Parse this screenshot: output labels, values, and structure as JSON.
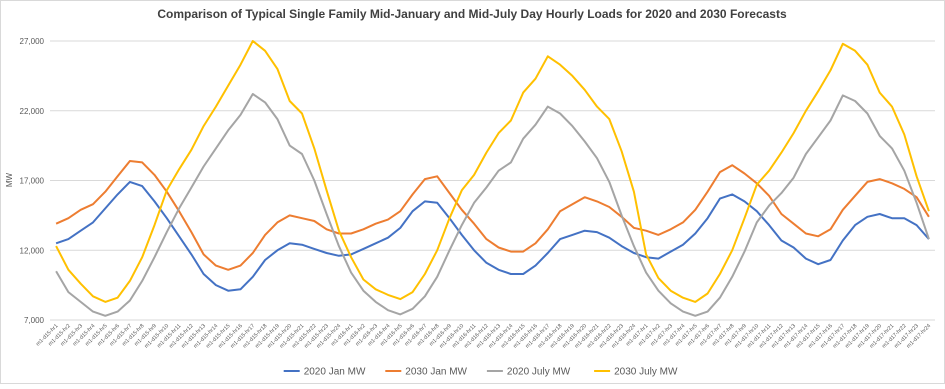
{
  "chart_data": {
    "type": "line",
    "title": "Comparison of Typical Single Family  Mid-January and Mid-July Day Hourly Loads for 2020 and 2030 Forecasts",
    "y_label": "MW",
    "categories": [
      "m1-d15-hr1",
      "m1-d15-hr2",
      "m1-d15-hr3",
      "m1-d15-hr4",
      "m1-d15-hr5",
      "m1-d15-hr6",
      "m1-d15-hr7",
      "m1-d15-hr8",
      "m1-d15-hr9",
      "m1-d15-hr10",
      "m1-d15-hr11",
      "m1-d15-hr12",
      "m1-d15-hr13",
      "m1-d15-hr14",
      "m1-d15-hr15",
      "m1-d15-hr16",
      "m1-d15-hr17",
      "m1-d15-hr18",
      "m1-d15-hr19",
      "m1-d15-hr20",
      "m1-d15-hr21",
      "m1-d15-hr22",
      "m1-d15-hr23",
      "m1-d15-hr24",
      "m1-d16-hr1",
      "m1-d16-hr2",
      "m1-d16-hr3",
      "m1-d16-hr4",
      "m1-d16-hr5",
      "m1-d16-hr6",
      "m1-d16-hr7",
      "m1-d16-hr8",
      "m1-d16-hr9",
      "m1-d16-hr10",
      "m1-d16-hr11",
      "m1-d16-hr12",
      "m1-d16-hr13",
      "m1-d16-hr14",
      "m1-d16-hr15",
      "m1-d16-hr16",
      "m1-d16-hr17",
      "m1-d16-hr18",
      "m1-d16-hr19",
      "m1-d16-hr20",
      "m1-d16-hr21",
      "m1-d16-hr22",
      "m1-d16-hr23",
      "m1-d16-hr24",
      "m1-d17-hr1",
      "m1-d17-hr2",
      "m1-d17-hr3",
      "m1-d17-hr4",
      "m1-d17-hr5",
      "m1-d17-hr6",
      "m1-d17-hr7",
      "m1-d17-hr8",
      "m1-d17-hr9",
      "m1-d17-hr10",
      "m1-d17-hr11",
      "m1-d17-hr12",
      "m1-d17-hr13",
      "m1-d17-hr14",
      "m1-d17-hr15",
      "m1-d17-hr16",
      "m1-d17-hr17",
      "m1-d17-hr18",
      "m1-d17-hr19",
      "m1-d17-hr20",
      "m1-d17-hr21",
      "m1-d17-hr22",
      "m1-d17-hr23",
      "m1-d17-hr24"
    ],
    "series": [
      {
        "name": "2020 Jan MW",
        "color": "#4472c4",
        "values": [
          12500,
          12800,
          13400,
          14000,
          15000,
          16000,
          16900,
          16600,
          15500,
          14300,
          13000,
          11700,
          10300,
          9500,
          9100,
          9200,
          10100,
          11300,
          12000,
          12500,
          12400,
          12100,
          11800,
          11600,
          11700,
          12100,
          12500,
          12900,
          13600,
          14800,
          15500,
          15400,
          14300,
          13100,
          12000,
          11100,
          10600,
          10300,
          10300,
          10900,
          11800,
          12800,
          13100,
          13400,
          13300,
          12900,
          12300,
          11800,
          11500,
          11400,
          11900,
          12400,
          13200,
          14300,
          15700,
          16000,
          15500,
          14800,
          13800,
          12700,
          12200,
          11400,
          11000,
          11300,
          12700,
          13800,
          14400,
          14600,
          14300,
          14300,
          13800,
          12800
        ]
      },
      {
        "name": "2030 Jan MW",
        "color": "#ed7d31",
        "values": [
          13900,
          14300,
          14900,
          15300,
          16200,
          17300,
          18400,
          18300,
          17400,
          16200,
          14800,
          13300,
          11700,
          10900,
          10600,
          10900,
          11800,
          13100,
          14000,
          14500,
          14300,
          14100,
          13500,
          13200,
          13200,
          13500,
          13900,
          14200,
          14800,
          16000,
          17100,
          17300,
          16100,
          14900,
          13900,
          12800,
          12200,
          11900,
          11900,
          12500,
          13500,
          14800,
          15300,
          15800,
          15500,
          15100,
          14400,
          13600,
          13400,
          13100,
          13500,
          14000,
          14900,
          16200,
          17600,
          18100,
          17500,
          16800,
          15900,
          14600,
          13900,
          13200,
          13000,
          13500,
          14900,
          15900,
          16900,
          17100,
          16800,
          16400,
          15800,
          14400
        ]
      },
      {
        "name": "2020 July MW",
        "color": "#a5a5a5",
        "values": [
          10500,
          9000,
          8300,
          7600,
          7300,
          7600,
          8400,
          9800,
          11500,
          13300,
          15000,
          16500,
          18000,
          19300,
          20600,
          21700,
          23200,
          22600,
          21400,
          19500,
          18900,
          17000,
          14600,
          12300,
          10400,
          9100,
          8300,
          7700,
          7400,
          7800,
          8700,
          10100,
          12000,
          13800,
          15400,
          16500,
          17700,
          18300,
          20000,
          21000,
          22300,
          21800,
          20900,
          19800,
          18600,
          16900,
          14500,
          12300,
          10400,
          9100,
          8200,
          7600,
          7300,
          7600,
          8600,
          10100,
          11900,
          14000,
          15200,
          16100,
          17200,
          18900,
          20100,
          21300,
          23100,
          22700,
          21800,
          20200,
          19300,
          17700,
          15400,
          12800
        ]
      },
      {
        "name": "2030 July MW",
        "color": "#ffc000",
        "values": [
          12300,
          10600,
          9600,
          8700,
          8300,
          8600,
          9800,
          11500,
          13800,
          16300,
          17800,
          19200,
          20900,
          22300,
          23800,
          25300,
          27000,
          26300,
          25000,
          22700,
          21800,
          19300,
          16300,
          13400,
          11500,
          9900,
          9200,
          8800,
          8500,
          9000,
          10300,
          12000,
          14300,
          16300,
          17400,
          19000,
          20400,
          21300,
          23300,
          24300,
          25900,
          25300,
          24500,
          23500,
          22300,
          21400,
          19100,
          16200,
          11700,
          10000,
          9100,
          8600,
          8300,
          8900,
          10300,
          12000,
          14300,
          16700,
          17700,
          19000,
          20400,
          22000,
          23400,
          24900,
          26800,
          26300,
          25300,
          23300,
          22300,
          20300,
          17300,
          14800
        ]
      }
    ],
    "ylim": [
      7000,
      27000
    ],
    "yticks": [
      {
        "value": 7000,
        "label": "7,000"
      },
      {
        "value": 12000,
        "label": "12,000"
      },
      {
        "value": 17000,
        "label": "17,000"
      },
      {
        "value": 22000,
        "label": "22,000"
      },
      {
        "value": 27000,
        "label": "27,000"
      }
    ],
    "grid": true,
    "legend": "bottom"
  }
}
